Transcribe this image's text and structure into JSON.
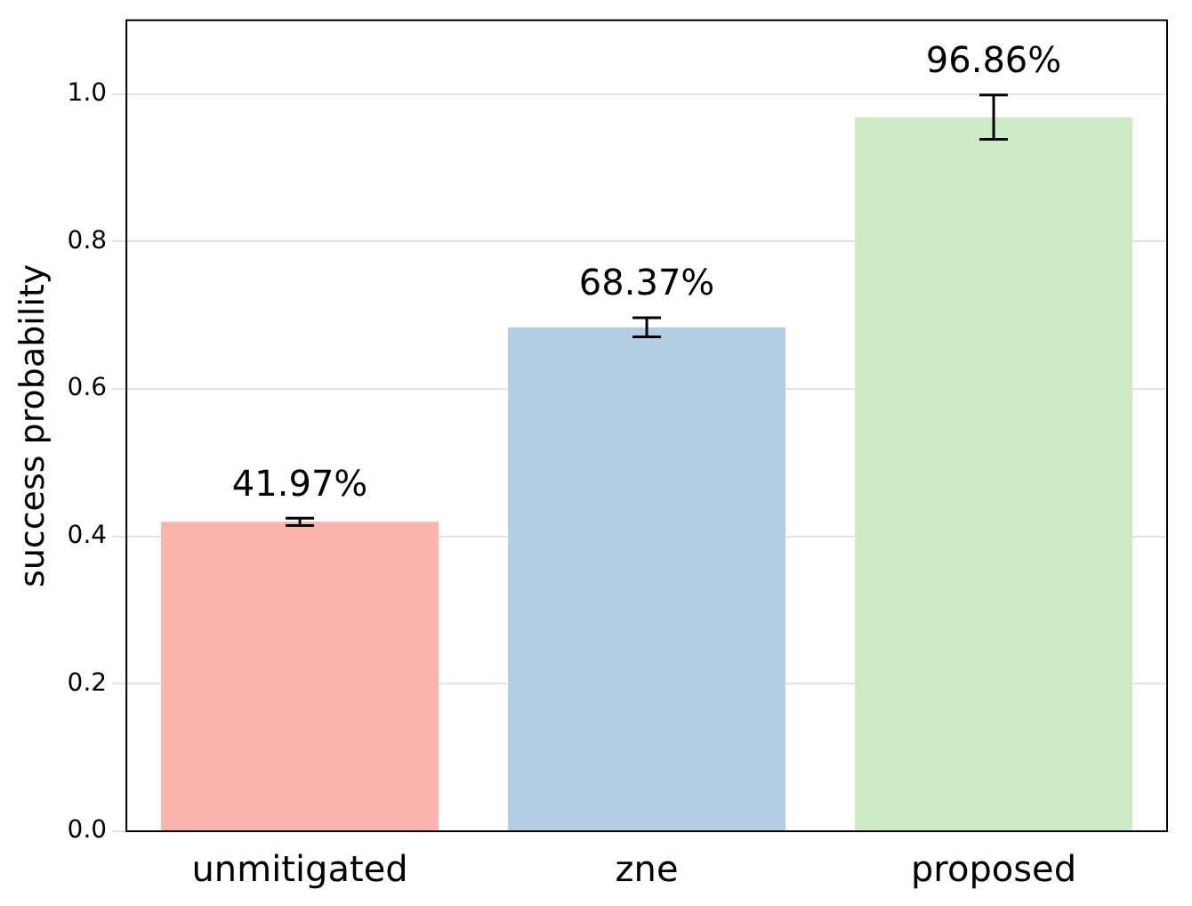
{
  "chart_data": {
    "type": "bar",
    "ylabel": "success probability",
    "categories": [
      "unmitigated",
      "zne",
      "proposed"
    ],
    "values": [
      0.4197,
      0.6837,
      0.9686
    ],
    "errors": [
      0.005,
      0.013,
      0.03
    ],
    "value_labels": [
      "41.97%",
      "68.37%",
      "96.86%"
    ],
    "colors": [
      "#fbb4ae",
      "#b3cde3",
      "#ccebc5"
    ],
    "ylim": [
      0,
      1.1
    ],
    "yticks": [
      {
        "value": 0,
        "label": "0.0"
      },
      {
        "value": 0.2,
        "label": "0.2"
      },
      {
        "value": 0.4,
        "label": "0.4"
      },
      {
        "value": 0.6,
        "label": "0.6"
      },
      {
        "value": 0.8,
        "label": "0.8"
      },
      {
        "value": 1,
        "label": "1.0"
      }
    ],
    "grid": "y"
  }
}
